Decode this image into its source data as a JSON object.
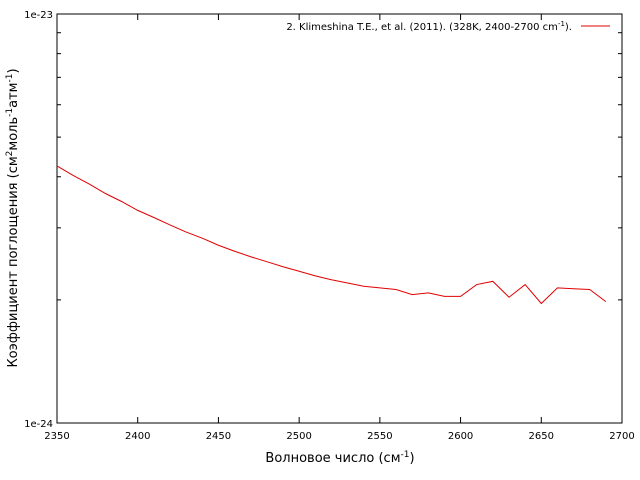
{
  "chart_data": {
    "type": "line",
    "xlabel_base": "Волновое число (см",
    "xlabel_sup": "-1",
    "xlabel_end": ")",
    "ylabel_a": "Коэффициент поглощения (см",
    "ylabel_sup1": "2",
    "ylabel_b": "моль",
    "ylabel_sup2": "-1",
    "ylabel_c": "атм",
    "ylabel_sup3": "-1",
    "ylabel_end": ")",
    "xlim": [
      2350,
      2700
    ],
    "ylim": [
      1e-24,
      1e-23
    ],
    "yscale": "log",
    "x_ticks": [
      "2350",
      "2400",
      "2450",
      "2500",
      "2550",
      "2600",
      "2650",
      "2700"
    ],
    "y_tick_labels": [
      "1e-24",
      "1e-23"
    ],
    "legend_position": "top-right",
    "series": [
      {
        "name": "2. Klimeshina T.E., et al. (2011). (328K, 2400-2700 cm",
        "name_sup": "-1",
        "name_end": ").",
        "color": "#e00000",
        "x": [
          2350,
          2360,
          2370,
          2380,
          2390,
          2400,
          2410,
          2420,
          2430,
          2440,
          2450,
          2460,
          2470,
          2480,
          2490,
          2500,
          2510,
          2520,
          2530,
          2540,
          2550,
          2560,
          2570,
          2580,
          2590,
          2600,
          2610,
          2620,
          2630,
          2640,
          2650,
          2660,
          2670,
          2680,
          2690
        ],
        "y": [
          4.25e-24,
          4.03e-24,
          3.84e-24,
          3.64e-24,
          3.48e-24,
          3.31e-24,
          3.18e-24,
          3.05e-24,
          2.93e-24,
          2.83e-24,
          2.72e-24,
          2.63e-24,
          2.55e-24,
          2.48e-24,
          2.41e-24,
          2.35e-24,
          2.29e-24,
          2.24e-24,
          2.2e-24,
          2.16e-24,
          2.14e-24,
          2.12e-24,
          2.06e-24,
          2.08e-24,
          2.04e-24,
          2.04e-24,
          2.18e-24,
          2.22e-24,
          2.03e-24,
          2.18e-24,
          1.96e-24,
          2.14e-24,
          2.13e-24,
          2.12e-24,
          1.98e-24
        ]
      }
    ]
  }
}
